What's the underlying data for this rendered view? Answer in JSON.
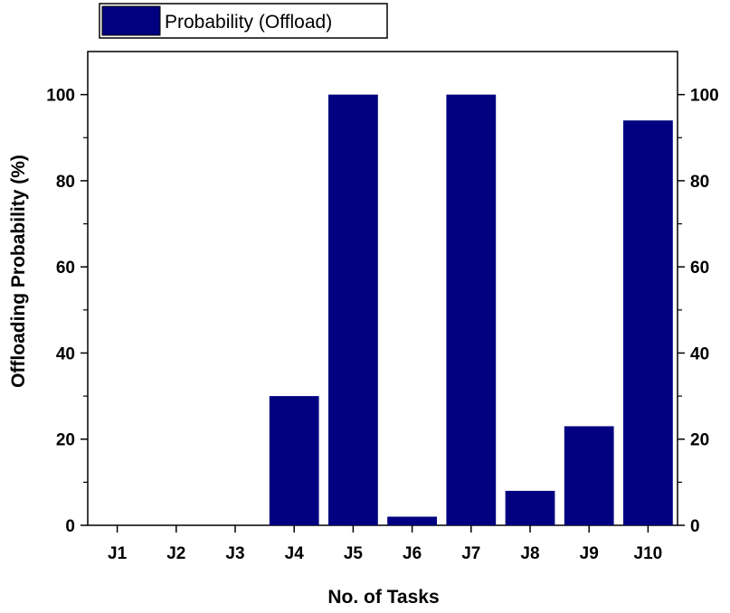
{
  "chart_data": {
    "type": "bar",
    "categories": [
      "J1",
      "J2",
      "J3",
      "J4",
      "J5",
      "J6",
      "J7",
      "J8",
      "J9",
      "J10"
    ],
    "series": [
      {
        "name": "Probability (Offload)",
        "values": [
          0,
          0,
          0,
          30,
          100,
          2,
          100,
          8,
          23,
          94
        ],
        "color": "#000080"
      }
    ],
    "xlabel": "No. of Tasks",
    "ylabel": "Offloading Probability (%)",
    "ylim": [
      0,
      110
    ],
    "yticks": [
      0,
      20,
      40,
      60,
      80,
      100
    ],
    "right_axis_ticks": true,
    "grid": false,
    "legend_position": "top-left"
  }
}
